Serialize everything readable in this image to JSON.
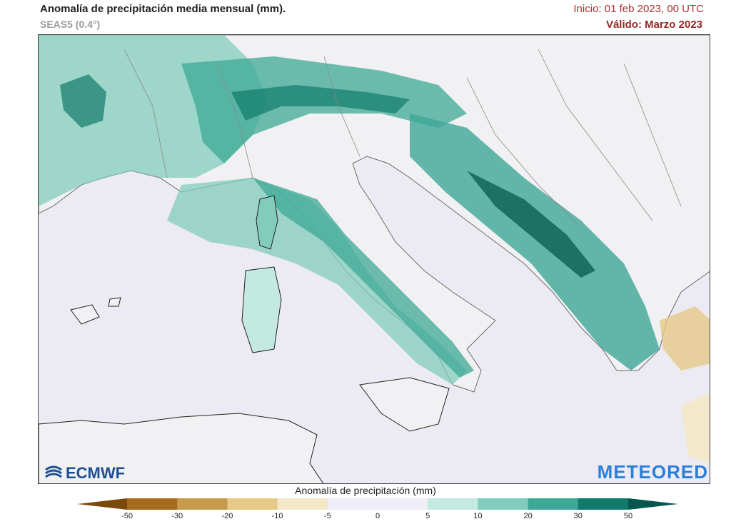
{
  "header": {
    "title": "Anomalía de precipitación media mensual (mm).",
    "subtitle": "SEAS5 (0.4°)",
    "init": "Inicio: 01 feb 2023, 00 UTC",
    "valid": "Válido: Marzo 2023"
  },
  "map": {
    "ocean_color": "#ecebf4",
    "land_color": "#f1f1f3",
    "border_color": "#8a8a8a"
  },
  "logos": {
    "ecmwf": "ECMWF",
    "meteored": "METEORED"
  },
  "legend": {
    "title": "Anomalía de precipitación (mm)",
    "ticks": [
      "-50",
      "-30",
      "-20",
      "-10",
      "-5",
      "0",
      "5",
      "10",
      "20",
      "30",
      "50"
    ],
    "colors": [
      "#7a4a0c",
      "#a86a1e",
      "#c89a4e",
      "#e6c987",
      "#f4e8c8",
      "#efeef6",
      "#efeef6",
      "#c3e9e0",
      "#82ccbc",
      "#3ea896",
      "#117a6a",
      "#06584e"
    ]
  }
}
